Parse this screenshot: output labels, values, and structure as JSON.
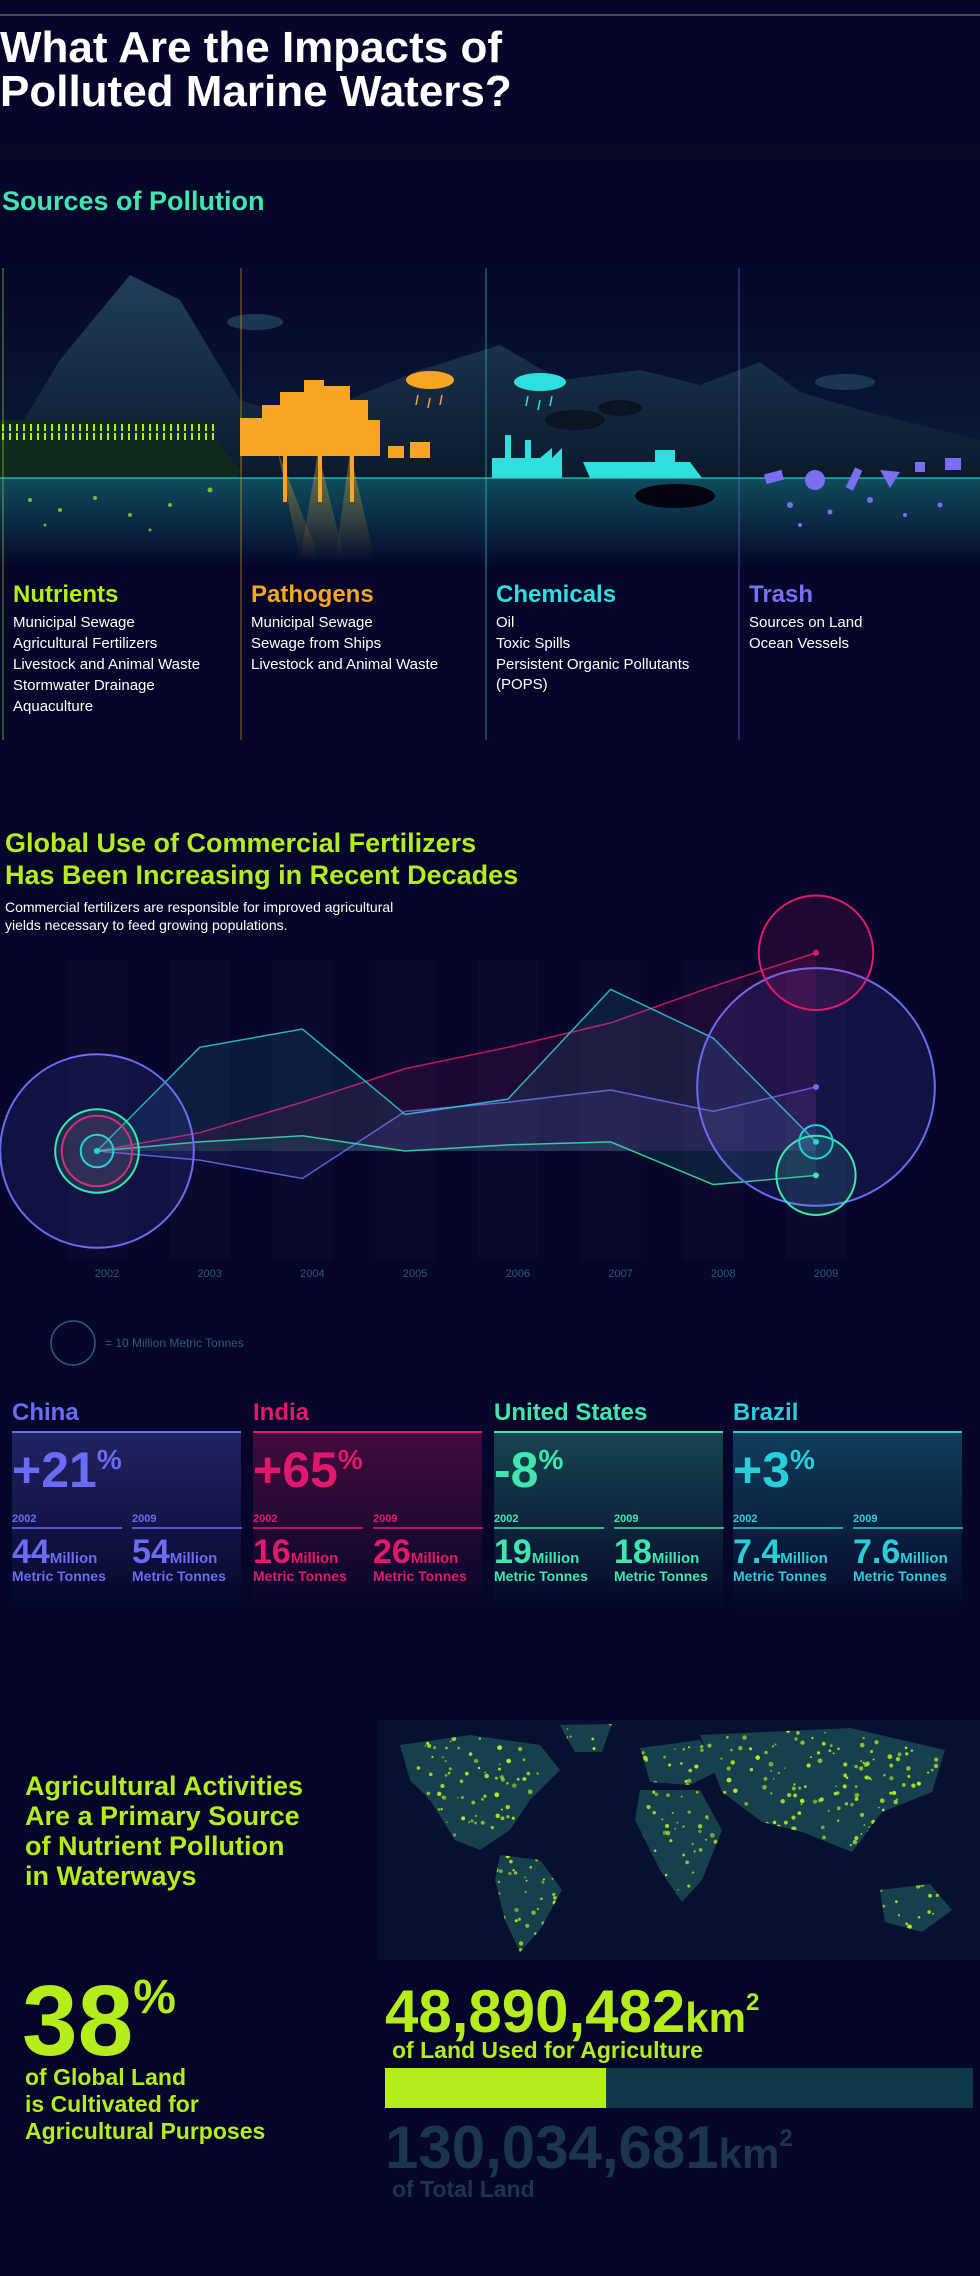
{
  "header": {
    "title_lines": [
      "What Are the Impacts of",
      "Polluted Marine Waters?"
    ]
  },
  "sources": {
    "title": "Sources of Pollution",
    "categories": [
      {
        "name": "Nutrients",
        "color": "#b4ec1c",
        "items": [
          "Municipal Sewage",
          "Agricultural Fertilizers",
          "Livestock and Animal Waste",
          "Stormwater Drainage",
          "Aquaculture"
        ]
      },
      {
        "name": "Pathogens",
        "color": "#f6a623",
        "items": [
          "Municipal Sewage",
          "Sewage from Ships",
          "Livestock and Animal Waste"
        ]
      },
      {
        "name": "Chemicals",
        "color": "#2fdede",
        "items": [
          "Oil",
          "Toxic Spills",
          "Persistent Organic Pollutants (POPS)"
        ]
      },
      {
        "name": "Trash",
        "color": "#7a6ff2",
        "items": [
          "Sources on Land",
          "Ocean Vessels"
        ]
      }
    ]
  },
  "fertilizers": {
    "title_lines": [
      "Global Use of Commercial Fertilizers",
      "Has Been Increasing in Recent Decades"
    ],
    "subtitle_lines": [
      "Commercial fertilizers are responsible for improved agricultural",
      "yields necessary to feed growing populations."
    ],
    "chart": {
      "type": "line",
      "x": [
        "2002",
        "2003",
        "2004",
        "2005",
        "2006",
        "2007",
        "2008",
        "2009"
      ],
      "size_legend": {
        "value": 10,
        "label": "= 10 Million Metric Tonnes"
      }
    },
    "unit_million": "Million",
    "unit_tonnes": "Metric Tonnes",
    "percent_sign": "%",
    "countries": [
      {
        "name": "China",
        "color": "#6b6cf5",
        "change": "+21",
        "years": [
          {
            "year": "2002",
            "value": 44
          },
          {
            "year": "2009",
            "value": 54
          }
        ],
        "trend": [
          0,
          -3,
          -9,
          13,
          16,
          20,
          13,
          21
        ]
      },
      {
        "name": "India",
        "color": "#e2186e",
        "change": "+65",
        "years": [
          {
            "year": "2002",
            "value": 16
          },
          {
            "year": "2009",
            "value": 26
          }
        ],
        "trend": [
          0,
          6,
          16,
          27,
          34,
          42,
          54,
          65
        ]
      },
      {
        "name": "United States",
        "color": "#3fe6ae",
        "change": "-8",
        "years": [
          {
            "year": "2002",
            "value": 19
          },
          {
            "year": "2009",
            "value": 18
          }
        ],
        "trend": [
          0,
          3,
          5,
          0,
          2,
          3,
          -11,
          -8
        ]
      },
      {
        "name": "Brazil",
        "color": "#29cfd8",
        "change": "+3",
        "years": [
          {
            "year": "2002",
            "value": 7.4
          },
          {
            "year": "2009",
            "value": 7.6
          }
        ],
        "trend": [
          0,
          34,
          40,
          12,
          17,
          53,
          37,
          3
        ]
      }
    ]
  },
  "agriculture": {
    "title_lines": [
      "Agricultural Activities",
      "Are a Primary Source",
      "of Nutrient Pollution",
      "in Waterways"
    ],
    "share": {
      "value": 38,
      "sign": "%"
    },
    "share_lines": [
      "of Global Land",
      "is Cultivated for",
      "Agricultural Purposes"
    ],
    "unit": "km",
    "unit_power": "2",
    "used": {
      "value": 48890482,
      "label": "48,890,482"
    },
    "used_caption": "of Land Used for Agriculture",
    "total": {
      "value": 130034681,
      "label": "130,034,681"
    },
    "total_caption": "of Total Land"
  }
}
